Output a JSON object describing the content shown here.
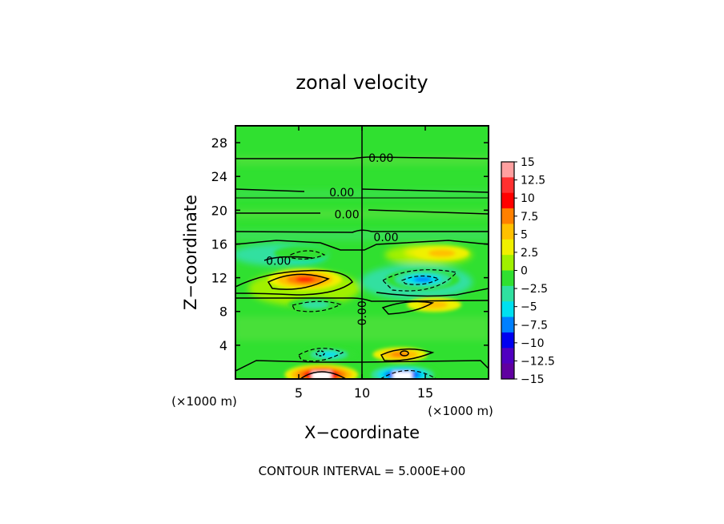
{
  "chart_data": {
    "type": "heatmap",
    "title": "zonal velocity",
    "xlabel": "X−coordinate",
    "ylabel": "Z−coordinate",
    "x_unit_label": "(×1000 m)",
    "y_unit_label": "(×1000 m)",
    "xlim": [
      0,
      20
    ],
    "ylim": [
      0,
      30
    ],
    "x_ticks": [
      "5",
      "10",
      "15"
    ],
    "y_ticks": [
      "4",
      "8",
      "12",
      "16",
      "20",
      "24",
      "28"
    ],
    "x_tick_values": [
      5,
      10,
      15
    ],
    "y_tick_values": [
      4,
      8,
      12,
      16,
      20,
      24,
      28
    ],
    "footer": "CONTOUR INTERVAL = 5.000E+00",
    "colorbar": {
      "labels": [
        "15",
        "12.5",
        "10",
        "7.5",
        "5",
        "2.5",
        "0",
        "−2.5",
        "−5",
        "−7.5",
        "−10",
        "−12.5",
        "−15"
      ],
      "colors": [
        "#ffa0a0",
        "#ff3030",
        "#ff0000",
        "#ff8000",
        "#ffc000",
        "#f0f000",
        "#a0f000",
        "#30e030",
        "#30e0a0",
        "#00e0f0",
        "#0080ff",
        "#0000f0",
        "#5000c0",
        "#6000a0"
      ]
    },
    "contour_labels": [
      {
        "text": "0.00",
        "x": 11.5,
        "z": 26.2
      },
      {
        "text": "0.00",
        "x": 8.4,
        "z": 22.1
      },
      {
        "text": "0.00",
        "x": 8.8,
        "z": 19.5
      },
      {
        "text": "0.00",
        "x": 11.9,
        "z": 16.8
      },
      {
        "text": "0.00",
        "x": 3.4,
        "z": 14.0
      },
      {
        "text": "0.00",
        "x": 10.0,
        "z": 7.8,
        "rotated": true
      }
    ],
    "features": [
      {
        "kind": "positive-max",
        "x": 5.5,
        "z": 11.8,
        "peak": 10
      },
      {
        "kind": "negative-min",
        "x": 14.8,
        "z": 11.8,
        "peak": -10
      },
      {
        "kind": "negative",
        "x": 6.3,
        "z": 8.8,
        "peak": -5
      },
      {
        "kind": "positive",
        "x": 15.7,
        "z": 8.8,
        "peak": 5
      },
      {
        "kind": "negative",
        "x": 7.4,
        "z": 2.9,
        "peak": -7.5
      },
      {
        "kind": "positive",
        "x": 13.0,
        "z": 2.9,
        "peak": 7.5
      },
      {
        "kind": "negative",
        "x": 5.2,
        "z": 14.9,
        "peak": -3
      },
      {
        "kind": "positive",
        "x": 16.3,
        "z": 14.9,
        "peak": 4
      },
      {
        "kind": "positive-max",
        "x": 6.8,
        "z": 0.5,
        "peak": 15
      },
      {
        "kind": "negative-min",
        "x": 13.2,
        "z": 0.5,
        "peak": -15
      }
    ]
  }
}
